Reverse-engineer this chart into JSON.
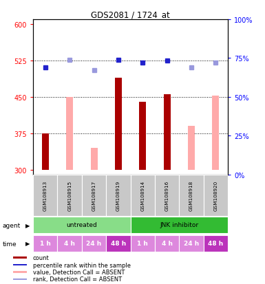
{
  "title": "GDS2081 / 1724_at",
  "samples": [
    "GSM108913",
    "GSM108915",
    "GSM108917",
    "GSM108919",
    "GSM108914",
    "GSM108916",
    "GSM108918",
    "GSM108920"
  ],
  "bar_values": [
    375,
    450,
    345,
    490,
    440,
    455,
    390,
    453
  ],
  "bar_colors": [
    "#aa0000",
    "#ffaaaa",
    "#ffaaaa",
    "#aa0000",
    "#aa0000",
    "#aa0000",
    "#ffaaaa",
    "#ffaaaa"
  ],
  "rank_values": [
    510,
    526,
    505,
    527,
    521,
    525,
    510,
    521
  ],
  "rank_colors": [
    "#2222cc",
    "#9999dd",
    "#9999dd",
    "#2222cc",
    "#2222cc",
    "#2222cc",
    "#9999dd",
    "#9999dd"
  ],
  "ylim_left": [
    290,
    610
  ],
  "ylim_right": [
    0,
    100
  ],
  "yticks_left": [
    300,
    375,
    450,
    525,
    600
  ],
  "yticks_right": [
    0,
    25,
    50,
    75,
    100
  ],
  "hlines": [
    375,
    450,
    525
  ],
  "agent_labels": [
    {
      "label": "untreated",
      "start": 0,
      "end": 4,
      "color": "#88dd88"
    },
    {
      "label": "JNK inhibitor",
      "start": 4,
      "end": 8,
      "color": "#33bb33"
    }
  ],
  "time_labels": [
    "1 h",
    "4 h",
    "24 h",
    "48 h",
    "1 h",
    "4 h",
    "24 h",
    "48 h"
  ],
  "time_colors": [
    "#dd88dd",
    "#dd88dd",
    "#dd88dd",
    "#bb33bb",
    "#dd88dd",
    "#dd88dd",
    "#dd88dd",
    "#bb33bb"
  ],
  "legend_items": [
    {
      "color": "#aa0000",
      "label": "count"
    },
    {
      "color": "#2222cc",
      "label": "percentile rank within the sample"
    },
    {
      "color": "#ffaaaa",
      "label": "value, Detection Call = ABSENT"
    },
    {
      "color": "#9999dd",
      "label": "rank, Detection Call = ABSENT"
    }
  ],
  "background_color": "#ffffff",
  "plot_bg": "#ffffff"
}
